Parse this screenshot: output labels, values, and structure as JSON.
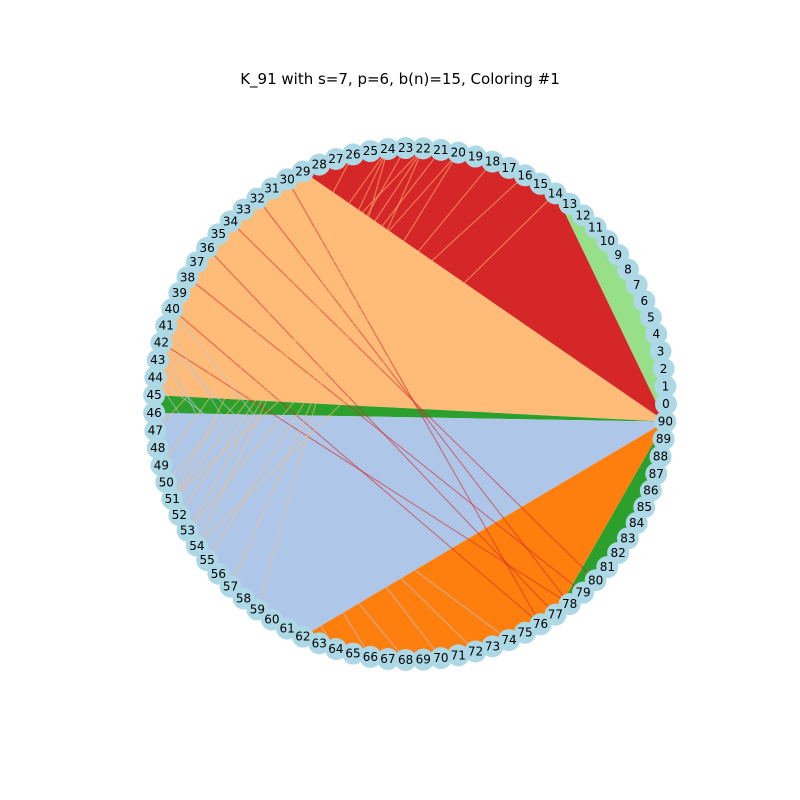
{
  "title": "K_91 with s=7, p=6, b(n)=15, Coloring #1",
  "graph": {
    "node_count": 91,
    "node_color": "#add8e6",
    "edge_colors": {
      "light_green": "#98df8a",
      "red": "#d62728",
      "peach": "#ffbb78",
      "green": "#2ca02c",
      "light_blue": "#aec7e8",
      "blue": "#1f77b4",
      "orange": "#ff7f0e"
    },
    "color_bands": [
      {
        "from": 0,
        "to": 14,
        "color": "light_green"
      },
      {
        "from": 14,
        "to": 29,
        "color": "red"
      },
      {
        "from": 29,
        "to": 45,
        "color": "peach"
      },
      {
        "from": 45,
        "to": 46,
        "color": "green"
      },
      {
        "from": 46,
        "to": 62,
        "color": "light_blue"
      },
      {
        "from": 62,
        "to": 77,
        "color": "orange"
      },
      {
        "from": 77,
        "to": 90,
        "color": "green"
      }
    ],
    "border_accents": [
      {
        "from": 29,
        "to": 45,
        "color": "red"
      },
      {
        "from": 46,
        "to": 62,
        "color": "blue"
      }
    ]
  }
}
